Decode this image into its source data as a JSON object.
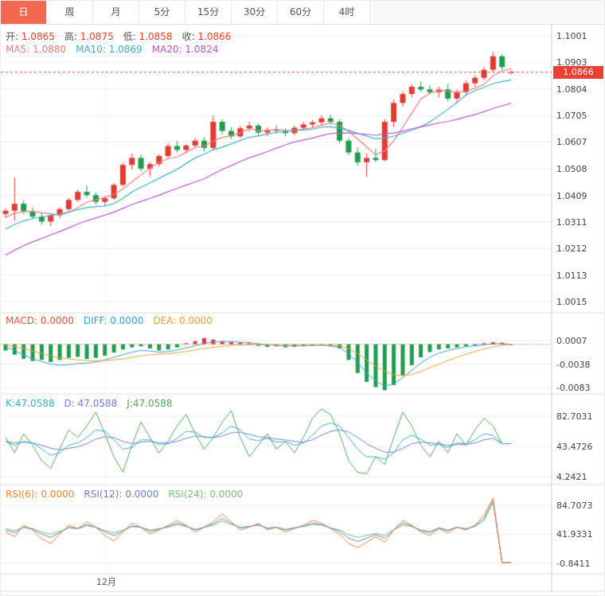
{
  "toolbar": {
    "tabs": [
      {
        "label": "日",
        "active": true
      },
      {
        "label": "周",
        "active": false
      },
      {
        "label": "月",
        "active": false
      },
      {
        "label": "5分",
        "active": false
      },
      {
        "label": "15分",
        "active": false
      },
      {
        "label": "30分",
        "active": false
      },
      {
        "label": "60分",
        "active": false
      },
      {
        "label": "4时",
        "active": false
      }
    ]
  },
  "colors": {
    "up": "#e23b34",
    "down": "#1f9d4d",
    "grid": "#ededed",
    "separator": "#dddddd",
    "axis_line": "#cccccc",
    "axis_text": "#444444",
    "price_line": "#e8442e",
    "price_tag_bg": "#ec3f33",
    "zero_line": "#e8998a",
    "tab_active_bg": "#f3684e",
    "tab_active_text": "#ffffff"
  },
  "legends": {
    "ohlc": [
      {
        "label": "开: ",
        "value": "1.0865",
        "label_color": "#555555",
        "value_color": "#e8442e"
      },
      {
        "label": "高: ",
        "value": "1.0875",
        "label_color": "#555555",
        "value_color": "#e8442e"
      },
      {
        "label": "低: ",
        "value": "1.0858",
        "label_color": "#555555",
        "value_color": "#e8442e"
      },
      {
        "label": "收: ",
        "value": "1.0866",
        "label_color": "#555555",
        "value_color": "#e8442e"
      }
    ],
    "ma": [
      {
        "label": "MA5: ",
        "value": "1.0880",
        "label_color": "#f27d7d",
        "value_color": "#f27d7d"
      },
      {
        "label": "MA10: ",
        "value": "1.0869",
        "label_color": "#3cb0c4",
        "value_color": "#3cb0c4"
      },
      {
        "label": "MA20: ",
        "value": "1.0824",
        "label_color": "#bb55cc",
        "value_color": "#bb55cc"
      }
    ],
    "macd": [
      {
        "label": "MACD: ",
        "value": "0.0000",
        "label_color": "#e8553a",
        "value_color": "#e8553a"
      },
      {
        "label": "DIFF: ",
        "value": "0.0000",
        "label_color": "#3f9fd8",
        "value_color": "#3f9fd8"
      },
      {
        "label": "DEA: ",
        "value": "0.0000",
        "label_color": "#f0a03c",
        "value_color": "#f0a03c"
      }
    ],
    "kdj": [
      {
        "label": "K:",
        "value": "47.0588",
        "label_color": "#3cb0c4",
        "value_color": "#3cb0c4"
      },
      {
        "label": "D: ",
        "value": "47.0588",
        "label_color": "#6f7fd8",
        "value_color": "#6f7fd8"
      },
      {
        "label": "J:",
        "value": "47.0588",
        "label_color": "#55aa55",
        "value_color": "#55aa55"
      }
    ],
    "rsi": [
      {
        "label": "RSI(6): ",
        "value": "0.0000",
        "label_color": "#f0853c",
        "value_color": "#f0853c"
      },
      {
        "label": "RSI(12): ",
        "value": "0.0000",
        "label_color": "#6f7fd8",
        "value_color": "#6f7fd8"
      },
      {
        "label": "RSI(24): ",
        "value": "0.0000",
        "label_color": "#7cbf7c",
        "value_color": "#7cbf7c"
      }
    ]
  },
  "chart_data": {
    "type": "candlestick",
    "x_axis": {
      "label": "12月"
    },
    "price_panel": {
      "title": "price",
      "ticks": [
        1.1001,
        1.0903,
        1.0804,
        1.0705,
        1.0607,
        1.0508,
        1.0409,
        1.0311,
        1.0212,
        1.0113,
        1.0015
      ],
      "ylim": [
        1.0015,
        1.1001
      ],
      "last_price": 1.0866,
      "last_price_label": "1.0866",
      "ohlc_current": {
        "open": 1.0865,
        "high": 1.0875,
        "low": 1.0858,
        "close": 1.0866
      },
      "overlays": [
        {
          "name": "MA5",
          "period": 5,
          "value": 1.088,
          "color": "#f27d7d"
        },
        {
          "name": "MA10",
          "period": 10,
          "value": 1.0869,
          "color": "#3cb0c4"
        },
        {
          "name": "MA20",
          "period": 20,
          "value": 1.0824,
          "color": "#bb55cc"
        }
      ],
      "ma_seed_closes": [
        0.998,
        1.0,
        1.002,
        1.004,
        1.006,
        1.008,
        1.01,
        1.012,
        1.014,
        1.016,
        1.018,
        1.02,
        1.022,
        1.024,
        1.026,
        1.028,
        1.03,
        1.032,
        1.033,
        1.0335
      ],
      "candles": [
        [
          1.034,
          1.036,
          1.0325,
          1.0352
        ],
        [
          1.0352,
          1.0475,
          1.0315,
          1.0378
        ],
        [
          1.0378,
          1.039,
          1.034,
          1.035
        ],
        [
          1.035,
          1.0365,
          1.032,
          1.033
        ],
        [
          1.033,
          1.0345,
          1.03,
          1.0312
        ],
        [
          1.0312,
          1.034,
          1.0295,
          1.0335
        ],
        [
          1.0335,
          1.0365,
          1.0325,
          1.0358
        ],
        [
          1.0358,
          1.04,
          1.035,
          1.0392
        ],
        [
          1.0392,
          1.043,
          1.0385,
          1.0422
        ],
        [
          1.0422,
          1.0445,
          1.04,
          1.041
        ],
        [
          1.041,
          1.042,
          1.0375,
          1.0385
        ],
        [
          1.0385,
          1.0405,
          1.037,
          1.0398
        ],
        [
          1.0398,
          1.0455,
          1.0392,
          1.0448
        ],
        [
          1.0448,
          1.053,
          1.0442,
          1.0522
        ],
        [
          1.0522,
          1.0565,
          1.0505,
          1.0548
        ],
        [
          1.0548,
          1.056,
          1.0498,
          1.0508
        ],
        [
          1.0508,
          1.0532,
          1.0478,
          1.0525
        ],
        [
          1.0525,
          1.0562,
          1.0515,
          1.0555
        ],
        [
          1.0555,
          1.0602,
          1.0545,
          1.0592
        ],
        [
          1.0592,
          1.0612,
          1.0568,
          1.0578
        ],
        [
          1.0578,
          1.06,
          1.0565,
          1.0594
        ],
        [
          1.0594,
          1.0622,
          1.0585,
          1.0612
        ],
        [
          1.0612,
          1.0625,
          1.0572,
          1.0585
        ],
        [
          1.0585,
          1.0705,
          1.0578,
          1.0682
        ],
        [
          1.0682,
          1.0692,
          1.0635,
          1.0648
        ],
        [
          1.0648,
          1.0662,
          1.0618,
          1.0628
        ],
        [
          1.0628,
          1.0668,
          1.0622,
          1.0658
        ],
        [
          1.0658,
          1.0682,
          1.0645,
          1.0668
        ],
        [
          1.0668,
          1.0675,
          1.0632,
          1.0642
        ],
        [
          1.0642,
          1.0662,
          1.0628,
          1.0652
        ],
        [
          1.0652,
          1.0668,
          1.0638,
          1.0648
        ],
        [
          1.0648,
          1.0658,
          1.0628,
          1.064
        ],
        [
          1.064,
          1.0668,
          1.0632,
          1.066
        ],
        [
          1.066,
          1.0682,
          1.065,
          1.0672
        ],
        [
          1.0672,
          1.0688,
          1.066,
          1.068
        ],
        [
          1.068,
          1.0705,
          1.0668,
          1.0695
        ],
        [
          1.0695,
          1.0708,
          1.0672,
          1.0682
        ],
        [
          1.0682,
          1.0692,
          1.0602,
          1.0612
        ],
        [
          1.0612,
          1.0622,
          1.0558,
          1.0568
        ],
        [
          1.0568,
          1.0588,
          1.0518,
          1.0532
        ],
        [
          1.0532,
          1.0565,
          1.0478,
          1.0548
        ],
        [
          1.0548,
          1.0582,
          1.0532,
          1.054
        ],
        [
          1.054,
          1.0692,
          1.0535,
          1.0682
        ],
        [
          1.0682,
          1.0765,
          1.0662,
          1.0752
        ],
        [
          1.0752,
          1.0795,
          1.0738,
          1.0785
        ],
        [
          1.0785,
          1.0822,
          1.0772,
          1.0812
        ],
        [
          1.0812,
          1.0832,
          1.0792,
          1.0802
        ],
        [
          1.0802,
          1.0818,
          1.0782,
          1.0792
        ],
        [
          1.0792,
          1.0812,
          1.0772,
          1.0802
        ],
        [
          1.0802,
          1.0822,
          1.0758,
          1.0768
        ],
        [
          1.0768,
          1.0802,
          1.0752,
          1.0792
        ],
        [
          1.0792,
          1.0835,
          1.0782,
          1.0825
        ],
        [
          1.0825,
          1.0855,
          1.0812,
          1.0845
        ],
        [
          1.0845,
          1.0885,
          1.0835,
          1.0875
        ],
        [
          1.0875,
          1.0942,
          1.0865,
          1.0925
        ],
        [
          1.0925,
          1.0932,
          1.0872,
          1.0885
        ],
        [
          1.0865,
          1.0875,
          1.0858,
          1.0866
        ]
      ]
    },
    "macd_panel": {
      "title": "MACD",
      "ticks": [
        0.0007,
        -0.0038,
        -0.0083
      ],
      "ylim": [
        -0.0092,
        0.0036
      ],
      "colors": {
        "diff": "#3f9fd8",
        "dea": "#f0a03c"
      },
      "hist": [
        -0.0012,
        -0.002,
        -0.0028,
        -0.0032,
        -0.003,
        -0.0034,
        -0.003,
        -0.0026,
        -0.0024,
        -0.0028,
        -0.0026,
        -0.0022,
        -0.0016,
        -0.001,
        -0.0006,
        -0.0004,
        -0.0008,
        -0.0012,
        -0.001,
        -0.0006,
        0.0002,
        0.0006,
        0.0012,
        0.0009,
        0.0006,
        0.0004,
        0.0003,
        0.0002,
        -0.0003,
        -0.0005,
        -0.0004,
        -0.0006,
        -0.0005,
        -0.0004,
        -0.0003,
        -0.0002,
        -0.0004,
        -0.0008,
        -0.003,
        -0.0055,
        -0.0072,
        -0.0082,
        -0.0088,
        -0.0078,
        -0.006,
        -0.004,
        -0.0025,
        -0.0015,
        -0.001,
        -0.0008,
        -0.0006,
        -0.0004,
        -0.0002,
        0.0002,
        0.0004,
        0.0003,
        0.0
      ],
      "diff": [
        -0.0005,
        -0.0012,
        -0.002,
        -0.0028,
        -0.0033,
        -0.0038,
        -0.004,
        -0.0039,
        -0.0037,
        -0.0036,
        -0.0034,
        -0.003,
        -0.0025,
        -0.002,
        -0.0015,
        -0.0012,
        -0.0013,
        -0.0015,
        -0.0014,
        -0.0011,
        -0.0007,
        -0.0003,
        0.0002,
        0.0004,
        0.0005,
        0.0005,
        0.0004,
        0.0003,
        0.0001,
        -0.0001,
        -0.0002,
        -0.0003,
        -0.0003,
        -0.0003,
        -0.0002,
        -0.0002,
        -0.0003,
        -0.0006,
        -0.0018,
        -0.0035,
        -0.0055,
        -0.007,
        -0.008,
        -0.0076,
        -0.0064,
        -0.005,
        -0.0036,
        -0.0025,
        -0.0017,
        -0.0012,
        -0.0008,
        -0.0005,
        -0.0003,
        -0.0001,
        0.0001,
        0.0001,
        0.0
      ],
      "dea": [
        -0.0002,
        -0.0004,
        -0.0008,
        -0.0013,
        -0.0018,
        -0.0022,
        -0.0026,
        -0.0028,
        -0.003,
        -0.0031,
        -0.0032,
        -0.0031,
        -0.003,
        -0.0028,
        -0.0025,
        -0.0022,
        -0.002,
        -0.0019,
        -0.0018,
        -0.0016,
        -0.0014,
        -0.0011,
        -0.0008,
        -0.0006,
        -0.0004,
        -0.0002,
        -0.0001,
        -0.0001,
        -0.0001,
        -0.0001,
        -0.0002,
        -0.0002,
        -0.0002,
        -0.0002,
        -0.0002,
        -0.0002,
        -0.0002,
        -0.0003,
        -0.0008,
        -0.0018,
        -0.003,
        -0.0042,
        -0.0052,
        -0.0058,
        -0.006,
        -0.0058,
        -0.0052,
        -0.0045,
        -0.0038,
        -0.0031,
        -0.0025,
        -0.0019,
        -0.0014,
        -0.0009,
        -0.0005,
        -0.0002,
        0.0
      ]
    },
    "kdj_panel": {
      "title": "KDJ",
      "ticks": [
        82.7031,
        43.4726,
        4.2421
      ],
      "ylim": [
        -4,
        95.1
      ],
      "colors": {
        "k": "#3cb0c4",
        "d": "#6f7fd8",
        "j": "#55aa55"
      },
      "k": [
        50,
        45,
        50,
        48,
        40,
        32,
        35,
        45,
        48,
        55,
        65,
        63,
        52,
        40,
        42,
        52,
        52,
        46,
        47,
        54,
        63,
        62,
        55,
        55,
        61,
        70,
        65,
        53,
        51,
        54,
        49,
        50,
        45,
        48,
        58,
        70,
        74,
        70,
        55,
        40,
        30,
        30,
        27,
        35,
        52,
        58,
        53,
        45,
        46,
        42,
        48,
        47,
        52,
        60,
        58,
        47.06,
        47.06
      ],
      "d": [
        50,
        48,
        49,
        48,
        45,
        41,
        39,
        41,
        43,
        47,
        53,
        56,
        55,
        50,
        47,
        49,
        50,
        48,
        48,
        50,
        54,
        57,
        56,
        55,
        57,
        61,
        62,
        59,
        56,
        55,
        53,
        52,
        50,
        49,
        52,
        58,
        63,
        65,
        62,
        55,
        47,
        41,
        36,
        36,
        41,
        47,
        49,
        48,
        47,
        45,
        46,
        46,
        48,
        52,
        54,
        47.06,
        47.06
      ],
      "j": [
        55,
        35,
        60,
        45,
        25,
        15,
        40,
        65,
        55,
        70,
        88,
        60,
        30,
        10,
        45,
        75,
        55,
        35,
        50,
        70,
        85,
        60,
        40,
        55,
        75,
        90,
        55,
        30,
        45,
        60,
        40,
        50,
        35,
        55,
        80,
        92,
        85,
        60,
        25,
        10,
        8,
        30,
        20,
        55,
        88,
        70,
        45,
        30,
        50,
        35,
        60,
        45,
        65,
        80,
        70,
        47.06,
        47.06
      ]
    },
    "rsi_panel": {
      "title": "RSI",
      "ticks": [
        84.7073,
        41.9331,
        -0.8411
      ],
      "ylim": [
        -14,
        96
      ],
      "colors": {
        "rsi6": "#f0853c",
        "rsi12": "#6f7fd8",
        "rsi24": "#7cbf7c"
      },
      "rsi6": [
        45,
        38,
        55,
        48,
        35,
        28,
        42,
        55,
        50,
        60,
        52,
        40,
        32,
        45,
        58,
        52,
        42,
        48,
        55,
        62,
        55,
        45,
        52,
        60,
        72,
        60,
        48,
        52,
        58,
        48,
        52,
        45,
        50,
        55,
        62,
        58,
        50,
        42,
        28,
        22,
        30,
        38,
        30,
        48,
        62,
        55,
        45,
        40,
        50,
        44,
        52,
        48,
        55,
        70,
        95,
        0,
        0
      ],
      "rsi12": [
        48,
        44,
        52,
        49,
        42,
        37,
        44,
        52,
        50,
        56,
        52,
        45,
        40,
        46,
        54,
        52,
        46,
        49,
        53,
        58,
        54,
        48,
        52,
        57,
        65,
        58,
        51,
        53,
        56,
        50,
        52,
        48,
        51,
        54,
        58,
        56,
        51,
        46,
        36,
        31,
        36,
        41,
        36,
        48,
        58,
        54,
        47,
        44,
        51,
        47,
        52,
        49,
        54,
        65,
        92,
        0,
        0
      ],
      "rsi24": [
        50,
        47,
        52,
        50,
        45,
        42,
        46,
        51,
        50,
        54,
        52,
        47,
        44,
        48,
        53,
        52,
        48,
        50,
        52,
        56,
        53,
        49,
        52,
        55,
        61,
        56,
        52,
        53,
        55,
        51,
        52,
        49,
        51,
        53,
        56,
        55,
        51,
        48,
        41,
        37,
        40,
        43,
        40,
        48,
        55,
        53,
        48,
        46,
        51,
        48,
        52,
        50,
        53,
        62,
        88,
        0,
        0
      ]
    }
  }
}
